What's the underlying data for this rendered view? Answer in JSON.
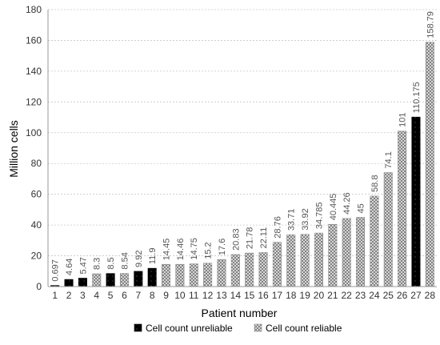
{
  "chart_data": {
    "type": "bar",
    "title": "",
    "xlabel": "Patient number",
    "ylabel": "Million cells",
    "ylim": [
      0,
      180
    ],
    "y_ticks": [
      0,
      20,
      40,
      60,
      80,
      100,
      120,
      140,
      160,
      180
    ],
    "grid": "dotted horizontal",
    "legend_position": "bottom",
    "colors": {
      "unreliable": "#000000",
      "reliable": "#8c8c8c"
    },
    "categories": [
      "1",
      "2",
      "3",
      "4",
      "5",
      "6",
      "7",
      "8",
      "9",
      "10",
      "11",
      "12",
      "13",
      "14",
      "15",
      "16",
      "17",
      "18",
      "19",
      "20",
      "21",
      "22",
      "23",
      "24",
      "25",
      "26",
      "27",
      "28"
    ],
    "values": [
      0.697,
      4.64,
      5.47,
      8.3,
      8.5,
      8.54,
      9.92,
      11.9,
      14.45,
      14.46,
      14.75,
      15.2,
      17.6,
      20.83,
      21.78,
      22.11,
      28.76,
      33.71,
      33.92,
      34.785,
      40.445,
      44.26,
      45,
      58.8,
      74.1,
      101,
      110.175,
      158.79
    ],
    "value_labels": [
      "0.697",
      "4.64",
      "5.47",
      "8.3",
      "8.5",
      "8.54",
      "9.92",
      "11.9",
      "14.45",
      "14.46",
      "14.75",
      "15.2",
      "17.6",
      "20.83",
      "21.78",
      "22.11",
      "28.76",
      "33.71",
      "33.92",
      "34.785",
      "40.445",
      "44.26",
      "45",
      "58.8",
      "74.1",
      "101",
      "110.175",
      "158.79"
    ],
    "reliability": [
      "unreliable",
      "unreliable",
      "unreliable",
      "reliable",
      "unreliable",
      "reliable",
      "unreliable",
      "unreliable",
      "reliable",
      "reliable",
      "reliable",
      "reliable",
      "reliable",
      "reliable",
      "reliable",
      "reliable",
      "reliable",
      "reliable",
      "reliable",
      "reliable",
      "reliable",
      "reliable",
      "reliable",
      "reliable",
      "reliable",
      "reliable",
      "unreliable",
      "reliable"
    ],
    "legend": [
      {
        "key": "unreliable",
        "label": "Cell count unreliable"
      },
      {
        "key": "reliable",
        "label": "Cell count reliable"
      }
    ]
  }
}
